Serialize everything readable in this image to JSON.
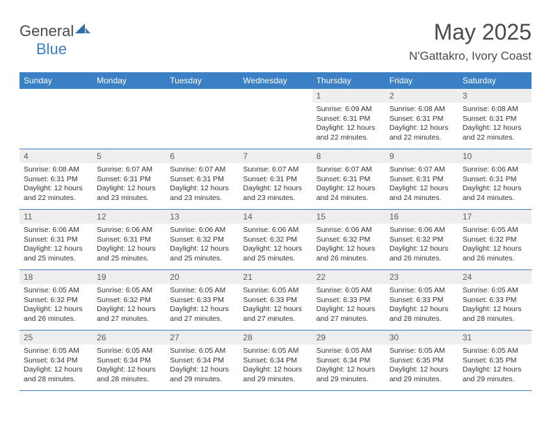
{
  "logo": {
    "text1": "General",
    "text2": "Blue"
  },
  "header": {
    "title": "May 2025",
    "location": "N'Gattakro, Ivory Coast"
  },
  "colors": {
    "brand": "#3b7fc4",
    "text": "#4a4a4a",
    "cellhead": "#eeeeee"
  },
  "daynames": [
    "Sunday",
    "Monday",
    "Tuesday",
    "Wednesday",
    "Thursday",
    "Friday",
    "Saturday"
  ],
  "weeks": [
    [
      {
        "n": "",
        "sr": "",
        "ss": "",
        "dl": ""
      },
      {
        "n": "",
        "sr": "",
        "ss": "",
        "dl": ""
      },
      {
        "n": "",
        "sr": "",
        "ss": "",
        "dl": ""
      },
      {
        "n": "",
        "sr": "",
        "ss": "",
        "dl": ""
      },
      {
        "n": "1",
        "sr": "Sunrise: 6:09 AM",
        "ss": "Sunset: 6:31 PM",
        "dl": "Daylight: 12 hours and 22 minutes."
      },
      {
        "n": "2",
        "sr": "Sunrise: 6:08 AM",
        "ss": "Sunset: 6:31 PM",
        "dl": "Daylight: 12 hours and 22 minutes."
      },
      {
        "n": "3",
        "sr": "Sunrise: 6:08 AM",
        "ss": "Sunset: 6:31 PM",
        "dl": "Daylight: 12 hours and 22 minutes."
      }
    ],
    [
      {
        "n": "4",
        "sr": "Sunrise: 6:08 AM",
        "ss": "Sunset: 6:31 PM",
        "dl": "Daylight: 12 hours and 22 minutes."
      },
      {
        "n": "5",
        "sr": "Sunrise: 6:07 AM",
        "ss": "Sunset: 6:31 PM",
        "dl": "Daylight: 12 hours and 23 minutes."
      },
      {
        "n": "6",
        "sr": "Sunrise: 6:07 AM",
        "ss": "Sunset: 6:31 PM",
        "dl": "Daylight: 12 hours and 23 minutes."
      },
      {
        "n": "7",
        "sr": "Sunrise: 6:07 AM",
        "ss": "Sunset: 6:31 PM",
        "dl": "Daylight: 12 hours and 23 minutes."
      },
      {
        "n": "8",
        "sr": "Sunrise: 6:07 AM",
        "ss": "Sunset: 6:31 PM",
        "dl": "Daylight: 12 hours and 24 minutes."
      },
      {
        "n": "9",
        "sr": "Sunrise: 6:07 AM",
        "ss": "Sunset: 6:31 PM",
        "dl": "Daylight: 12 hours and 24 minutes."
      },
      {
        "n": "10",
        "sr": "Sunrise: 6:06 AM",
        "ss": "Sunset: 6:31 PM",
        "dl": "Daylight: 12 hours and 24 minutes."
      }
    ],
    [
      {
        "n": "11",
        "sr": "Sunrise: 6:06 AM",
        "ss": "Sunset: 6:31 PM",
        "dl": "Daylight: 12 hours and 25 minutes."
      },
      {
        "n": "12",
        "sr": "Sunrise: 6:06 AM",
        "ss": "Sunset: 6:31 PM",
        "dl": "Daylight: 12 hours and 25 minutes."
      },
      {
        "n": "13",
        "sr": "Sunrise: 6:06 AM",
        "ss": "Sunset: 6:32 PM",
        "dl": "Daylight: 12 hours and 25 minutes."
      },
      {
        "n": "14",
        "sr": "Sunrise: 6:06 AM",
        "ss": "Sunset: 6:32 PM",
        "dl": "Daylight: 12 hours and 25 minutes."
      },
      {
        "n": "15",
        "sr": "Sunrise: 6:06 AM",
        "ss": "Sunset: 6:32 PM",
        "dl": "Daylight: 12 hours and 26 minutes."
      },
      {
        "n": "16",
        "sr": "Sunrise: 6:06 AM",
        "ss": "Sunset: 6:32 PM",
        "dl": "Daylight: 12 hours and 26 minutes."
      },
      {
        "n": "17",
        "sr": "Sunrise: 6:05 AM",
        "ss": "Sunset: 6:32 PM",
        "dl": "Daylight: 12 hours and 26 minutes."
      }
    ],
    [
      {
        "n": "18",
        "sr": "Sunrise: 6:05 AM",
        "ss": "Sunset: 6:32 PM",
        "dl": "Daylight: 12 hours and 26 minutes."
      },
      {
        "n": "19",
        "sr": "Sunrise: 6:05 AM",
        "ss": "Sunset: 6:32 PM",
        "dl": "Daylight: 12 hours and 27 minutes."
      },
      {
        "n": "20",
        "sr": "Sunrise: 6:05 AM",
        "ss": "Sunset: 6:33 PM",
        "dl": "Daylight: 12 hours and 27 minutes."
      },
      {
        "n": "21",
        "sr": "Sunrise: 6:05 AM",
        "ss": "Sunset: 6:33 PM",
        "dl": "Daylight: 12 hours and 27 minutes."
      },
      {
        "n": "22",
        "sr": "Sunrise: 6:05 AM",
        "ss": "Sunset: 6:33 PM",
        "dl": "Daylight: 12 hours and 27 minutes."
      },
      {
        "n": "23",
        "sr": "Sunrise: 6:05 AM",
        "ss": "Sunset: 6:33 PM",
        "dl": "Daylight: 12 hours and 28 minutes."
      },
      {
        "n": "24",
        "sr": "Sunrise: 6:05 AM",
        "ss": "Sunset: 6:33 PM",
        "dl": "Daylight: 12 hours and 28 minutes."
      }
    ],
    [
      {
        "n": "25",
        "sr": "Sunrise: 6:05 AM",
        "ss": "Sunset: 6:34 PM",
        "dl": "Daylight: 12 hours and 28 minutes."
      },
      {
        "n": "26",
        "sr": "Sunrise: 6:05 AM",
        "ss": "Sunset: 6:34 PM",
        "dl": "Daylight: 12 hours and 28 minutes."
      },
      {
        "n": "27",
        "sr": "Sunrise: 6:05 AM",
        "ss": "Sunset: 6:34 PM",
        "dl": "Daylight: 12 hours and 29 minutes."
      },
      {
        "n": "28",
        "sr": "Sunrise: 6:05 AM",
        "ss": "Sunset: 6:34 PM",
        "dl": "Daylight: 12 hours and 29 minutes."
      },
      {
        "n": "29",
        "sr": "Sunrise: 6:05 AM",
        "ss": "Sunset: 6:34 PM",
        "dl": "Daylight: 12 hours and 29 minutes."
      },
      {
        "n": "30",
        "sr": "Sunrise: 6:05 AM",
        "ss": "Sunset: 6:35 PM",
        "dl": "Daylight: 12 hours and 29 minutes."
      },
      {
        "n": "31",
        "sr": "Sunrise: 6:05 AM",
        "ss": "Sunset: 6:35 PM",
        "dl": "Daylight: 12 hours and 29 minutes."
      }
    ]
  ]
}
